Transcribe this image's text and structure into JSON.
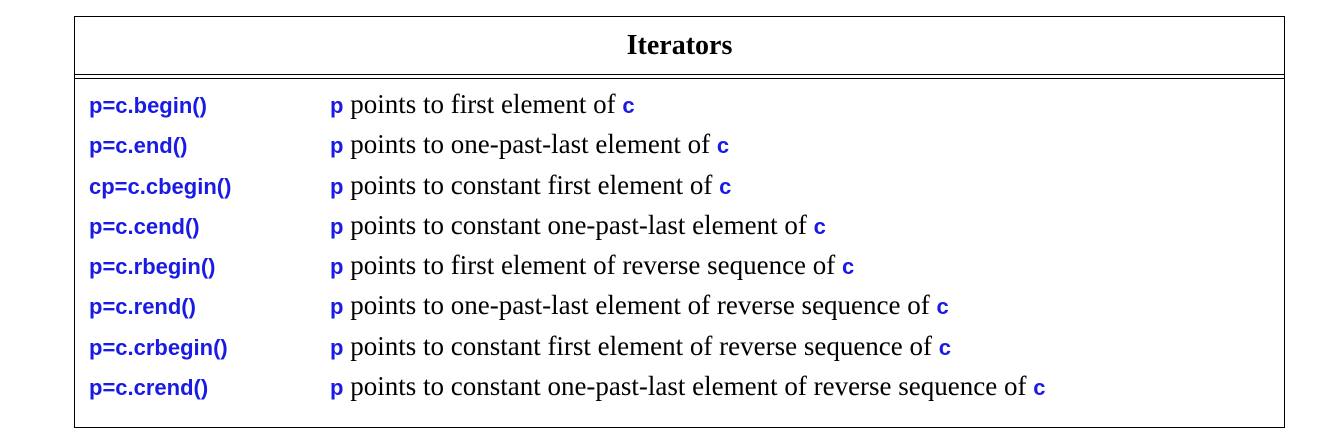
{
  "table": {
    "title": "Iterators",
    "rows": [
      {
        "op": "p=c.begin()",
        "subject": "p",
        "text": " points to first element of ",
        "object": "c"
      },
      {
        "op": "p=c.end()",
        "subject": "p",
        "text": " points to one-past-last element of ",
        "object": "c"
      },
      {
        "op": "cp=c.cbegin()",
        "subject": "p",
        "text": " points to constant first element of ",
        "object": "c"
      },
      {
        "op": "p=c.cend()",
        "subject": "p",
        "text": " points to constant one-past-last element of ",
        "object": "c"
      },
      {
        "op": "p=c.rbegin()",
        "subject": "p",
        "text": " points to first element of reverse sequence of ",
        "object": "c"
      },
      {
        "op": "p=c.rend()",
        "subject": "p",
        "text": " points to one-past-last element of reverse sequence of ",
        "object": "c"
      },
      {
        "op": "p=c.crbegin()",
        "subject": "p",
        "text": " points to constant first element of reverse sequence of ",
        "object": "c"
      },
      {
        "op": "p=c.crend()",
        "subject": "p",
        "text": " points to constant one-past-last element of reverse sequence of ",
        "object": "c"
      }
    ]
  },
  "colors": {
    "code": "#1a1ae6",
    "text": "#000000",
    "border": "#000000"
  }
}
